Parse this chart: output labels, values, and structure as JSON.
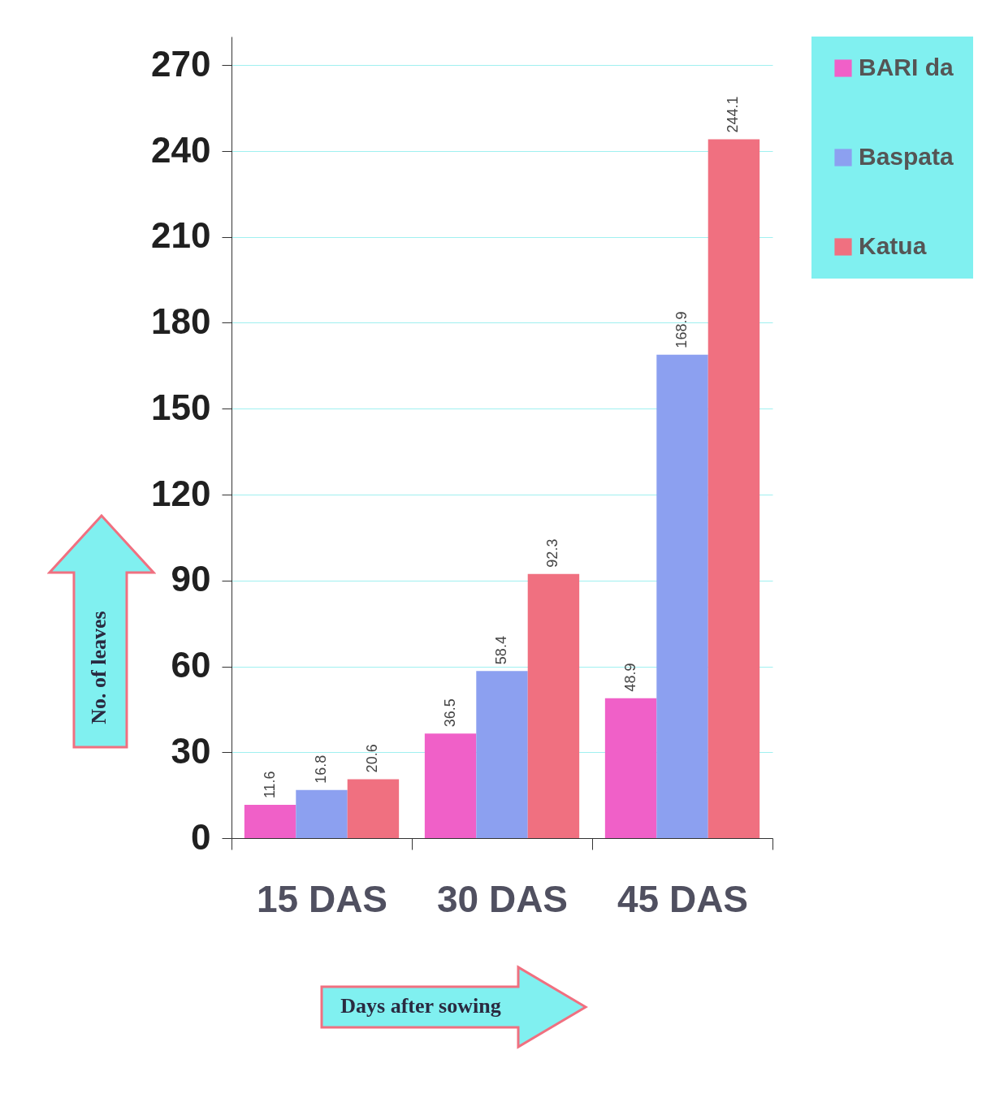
{
  "chart_data": {
    "type": "bar",
    "xlabel": "Days after sowing",
    "ylabel": "No. of leaves",
    "categories": [
      "15 DAS",
      "30 DAS",
      "45 DAS"
    ],
    "series": [
      {
        "name": "BARI da",
        "color": "#f060c8",
        "values": [
          11.6,
          36.5,
          48.9
        ]
      },
      {
        "name": "Baspata",
        "color": "#8ca0f0",
        "values": [
          16.8,
          58.4,
          168.9
        ]
      },
      {
        "name": "Katua",
        "color": "#f07080",
        "values": [
          20.6,
          92.3,
          244.1
        ]
      }
    ],
    "ylim": [
      0,
      280
    ],
    "yticks": [
      0,
      30,
      60,
      90,
      120,
      150,
      180,
      210,
      240,
      270
    ],
    "grid": "y",
    "legend": "right",
    "data_labels": true
  }
}
